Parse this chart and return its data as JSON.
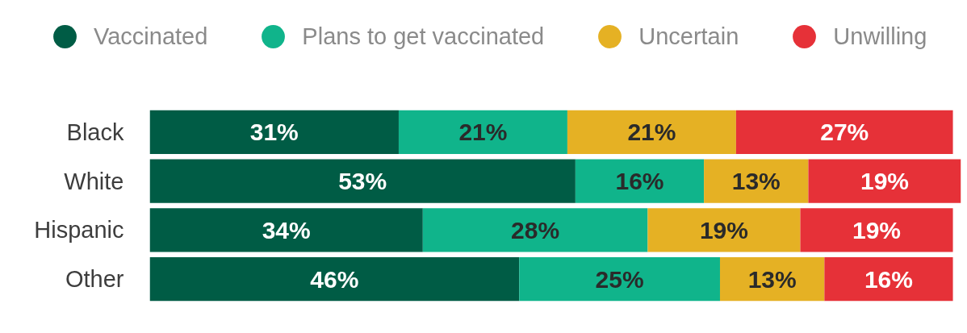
{
  "chart_data": {
    "type": "bar",
    "orientation": "horizontal",
    "stacked": true,
    "categories": [
      "Black",
      "White",
      "Hispanic",
      "Other"
    ],
    "xlim": [
      0,
      101
    ],
    "tick_labels": "y",
    "legend": "top",
    "series": [
      {
        "name": "Vaccinated",
        "color": "#005c45",
        "values": [
          31,
          53,
          34,
          46
        ],
        "value_labels": [
          "31%",
          "53%",
          "34%",
          "46%"
        ]
      },
      {
        "name": "Plans to get vaccinated",
        "color": "#10b48b",
        "values": [
          21,
          16,
          28,
          25
        ],
        "value_labels": [
          "21%",
          "16%",
          "28%",
          "25%"
        ]
      },
      {
        "name": "Uncertain",
        "color": "#e5b124",
        "values": [
          21,
          13,
          19,
          13
        ],
        "value_labels": [
          "21%",
          "13%",
          "19%",
          "13%"
        ]
      },
      {
        "name": "Unwilling",
        "color": "#e63138",
        "values": [
          27,
          19,
          19,
          16
        ],
        "value_labels": [
          "27%",
          "19%",
          "19%",
          "16%"
        ]
      }
    ]
  }
}
